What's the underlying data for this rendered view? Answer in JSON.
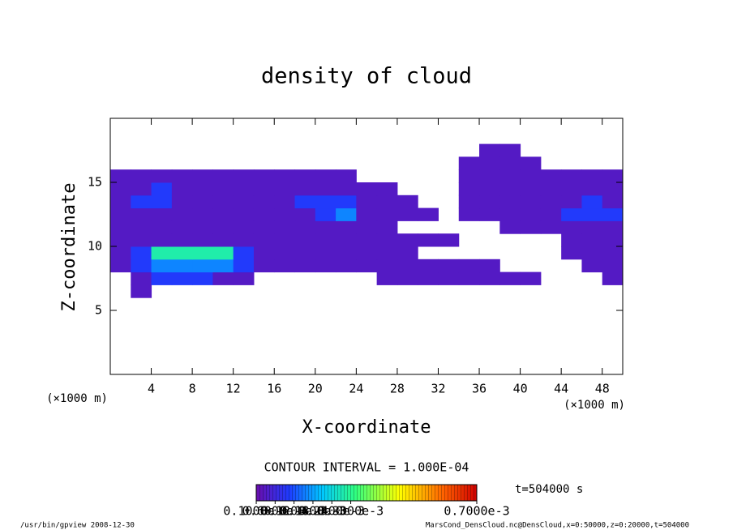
{
  "chart_data": {
    "type": "contour",
    "title": "density of cloud",
    "xlabel": "X-coordinate",
    "ylabel": "Z-coordinate",
    "xunit": "(×1000 m)",
    "xlim": [
      0,
      50
    ],
    "ylim": [
      0,
      20
    ],
    "xticks": [
      4,
      8,
      12,
      16,
      20,
      24,
      28,
      32,
      36,
      40,
      44,
      48
    ],
    "yticks": [
      5,
      10,
      15
    ],
    "annotation": "CONTOUR INTERVAL = 1.000E-04",
    "time_label": "t=504000 s",
    "clim": [
      0,
      0.0007
    ],
    "colorbar_ticks": [
      {
        "value": 1e-07,
        "label": "0.1000e-6"
      },
      {
        "value": 6e-05,
        "label": "0.6000e-4"
      },
      {
        "value": 0.00012,
        "label": "0.1200e-3"
      },
      {
        "value": 0.00018,
        "label": "0.1800e-3"
      },
      {
        "value": 0.00024,
        "label": "0.2400e-3"
      },
      {
        "value": 0.0003,
        "label": "0.3000e-3"
      },
      {
        "value": 0.0007,
        "label": "0.7000e-3"
      }
    ],
    "footer_left": "/usr/bin/gpview  2008-12-30",
    "footer_right": "MarsCond_DensCloud.nc@DensCloud,x=0:50000,z=0:20000,t=504000",
    "z": [
      [
        0,
        0,
        0,
        0,
        0,
        0,
        0,
        0,
        0,
        0,
        0,
        0,
        0,
        0,
        0,
        0,
        0,
        0,
        0,
        0,
        0,
        0,
        0,
        0,
        0
      ],
      [
        0,
        0,
        0,
        0,
        0,
        0,
        0,
        0,
        0,
        0,
        0,
        0,
        0,
        0,
        0,
        0,
        0,
        0,
        0,
        0,
        0,
        0,
        0,
        0,
        0
      ],
      [
        0,
        0,
        0,
        0,
        0,
        0,
        0,
        0,
        0,
        0,
        0,
        0,
        0,
        0,
        0,
        0,
        0,
        0,
        0,
        0,
        0,
        0,
        0,
        0,
        0
      ],
      [
        0,
        0,
        0,
        0,
        0,
        0,
        0,
        0,
        0,
        0,
        0,
        0,
        0,
        0,
        0,
        0,
        0,
        0,
        0,
        0,
        0,
        0,
        0,
        0,
        0
      ],
      [
        0,
        0,
        0,
        0,
        0,
        0,
        0,
        0,
        0,
        0,
        0,
        0,
        0,
        0,
        0,
        0,
        0,
        0,
        0,
        0,
        0,
        0,
        0,
        0,
        0
      ],
      [
        0,
        0,
        0,
        0,
        0,
        0,
        0,
        0,
        0,
        0,
        0,
        0,
        0,
        0,
        0,
        0,
        0,
        0,
        0,
        0,
        0,
        0,
        0,
        0,
        0
      ],
      [
        0,
        3e-05,
        0,
        0,
        0,
        0,
        0,
        0,
        0,
        0,
        0,
        0,
        0,
        0,
        0,
        0,
        0,
        0,
        0,
        0,
        0,
        0,
        0,
        0,
        0
      ],
      [
        0,
        3e-05,
        0.0001,
        0.0001,
        0.0001,
        3e-05,
        3e-05,
        0,
        0,
        0,
        0,
        0,
        0,
        3e-05,
        3e-05,
        3e-05,
        3e-05,
        3e-05,
        3e-05,
        3e-05,
        3e-05,
        0,
        0,
        0,
        3e-05
      ],
      [
        3e-05,
        0.0001,
        0.00016,
        0.00016,
        0.00016,
        0.00016,
        0.0001,
        3e-05,
        3e-05,
        3e-05,
        3e-05,
        3e-05,
        3e-05,
        3e-05,
        3e-05,
        3e-05,
        3e-05,
        3e-05,
        3e-05,
        0,
        0,
        0,
        0,
        3e-05,
        3e-05
      ],
      [
        3e-05,
        0.0001,
        0.00028,
        0.00028,
        0.00028,
        0.00028,
        0.0001,
        3e-05,
        3e-05,
        3e-05,
        3e-05,
        3e-05,
        3e-05,
        3e-05,
        3e-05,
        0,
        0,
        0,
        0,
        0,
        0,
        0,
        3e-05,
        3e-05,
        3e-05
      ],
      [
        3e-05,
        3e-05,
        3e-05,
        3e-05,
        3e-05,
        3e-05,
        3e-05,
        3e-05,
        3e-05,
        3e-05,
        3e-05,
        3e-05,
        3e-05,
        3e-05,
        3e-05,
        3e-05,
        3e-05,
        0,
        0,
        0,
        0,
        0,
        3e-05,
        3e-05,
        3e-05
      ],
      [
        3e-05,
        3e-05,
        3e-05,
        3e-05,
        3e-05,
        3e-05,
        3e-05,
        3e-05,
        3e-05,
        3e-05,
        3e-05,
        3e-05,
        3e-05,
        3e-05,
        0,
        0,
        0,
        0,
        0,
        3e-05,
        3e-05,
        3e-05,
        3e-05,
        3e-05,
        3e-05
      ],
      [
        3e-05,
        3e-05,
        3e-05,
        3e-05,
        3e-05,
        3e-05,
        3e-05,
        3e-05,
        3e-05,
        3e-05,
        0.0001,
        0.00016,
        3e-05,
        3e-05,
        3e-05,
        3e-05,
        0,
        3e-05,
        3e-05,
        3e-05,
        3e-05,
        3e-05,
        0.0001,
        0.0001,
        0.0001
      ],
      [
        3e-05,
        0.0001,
        0.0001,
        3e-05,
        3e-05,
        3e-05,
        3e-05,
        3e-05,
        3e-05,
        0.0001,
        0.0001,
        0.0001,
        3e-05,
        3e-05,
        3e-05,
        0,
        0,
        3e-05,
        3e-05,
        3e-05,
        3e-05,
        3e-05,
        3e-05,
        0.0001,
        3e-05
      ],
      [
        3e-05,
        3e-05,
        0.0001,
        3e-05,
        3e-05,
        3e-05,
        3e-05,
        3e-05,
        3e-05,
        3e-05,
        3e-05,
        3e-05,
        3e-05,
        3e-05,
        0,
        0,
        0,
        3e-05,
        3e-05,
        3e-05,
        3e-05,
        3e-05,
        3e-05,
        3e-05,
        3e-05
      ],
      [
        3e-05,
        3e-05,
        3e-05,
        3e-05,
        3e-05,
        3e-05,
        3e-05,
        3e-05,
        3e-05,
        3e-05,
        3e-05,
        3e-05,
        0,
        0,
        0,
        0,
        0,
        3e-05,
        3e-05,
        3e-05,
        3e-05,
        3e-05,
        3e-05,
        3e-05,
        3e-05
      ],
      [
        0,
        0,
        0,
        0,
        0,
        0,
        0,
        0,
        0,
        0,
        0,
        0,
        0,
        0,
        0,
        0,
        0,
        3e-05,
        3e-05,
        3e-05,
        3e-05,
        0,
        0,
        0,
        0
      ],
      [
        0,
        0,
        0,
        0,
        0,
        0,
        0,
        0,
        0,
        0,
        0,
        0,
        0,
        0,
        0,
        0,
        0,
        0,
        3e-05,
        3e-05,
        0,
        0,
        0,
        0,
        0
      ],
      [
        0,
        0,
        0,
        0,
        0,
        0,
        0,
        0,
        0,
        0,
        0,
        0,
        0,
        0,
        0,
        0,
        0,
        0,
        0,
        0,
        0,
        0,
        0,
        0,
        0
      ],
      [
        0,
        0,
        0,
        0,
        0,
        0,
        0,
        0,
        0,
        0,
        0,
        0,
        0,
        0,
        0,
        0,
        0,
        0,
        0,
        0,
        0,
        0,
        0,
        0,
        0
      ]
    ]
  }
}
